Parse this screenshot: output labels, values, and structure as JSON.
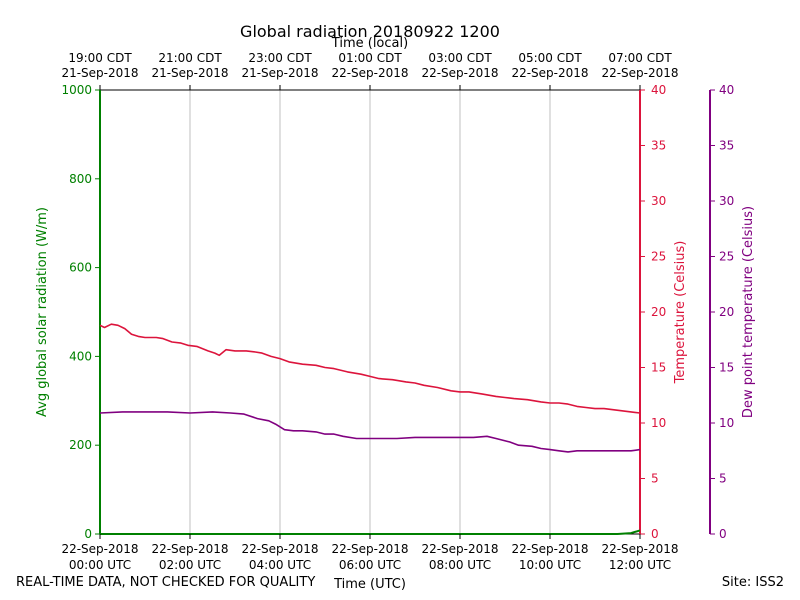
{
  "chart_data": {
    "type": "line",
    "title": "Global radiation 20180922 1200",
    "top_axis_label": "Time (local)",
    "xlabel": "Time (UTC)",
    "ylabel_left": "Avg global solar radiation (W/m)",
    "ylabel_right": "Temperature (Celsius)",
    "ylabel_far_right": "Dew point temperature (Celsius)",
    "x_range_hours_utc": [
      0,
      12
    ],
    "ylim_left": [
      0,
      1000
    ],
    "ylim_right": [
      0,
      40
    ],
    "ylim_far_right": [
      0,
      40
    ],
    "left_ticks": [
      "0",
      "200",
      "400",
      "600",
      "800",
      "1000"
    ],
    "right_ticks": [
      "0",
      "5",
      "10",
      "15",
      "20",
      "25",
      "30",
      "35",
      "40"
    ],
    "bottom_ticks": [
      [
        "22-Sep-2018",
        "00:00 UTC"
      ],
      [
        "22-Sep-2018",
        "02:00 UTC"
      ],
      [
        "22-Sep-2018",
        "04:00 UTC"
      ],
      [
        "22-Sep-2018",
        "06:00 UTC"
      ],
      [
        "22-Sep-2018",
        "08:00 UTC"
      ],
      [
        "22-Sep-2018",
        "10:00 UTC"
      ],
      [
        "22-Sep-2018",
        "12:00 UTC"
      ]
    ],
    "top_ticks": [
      [
        "19:00 CDT",
        "21-Sep-2018"
      ],
      [
        "21:00 CDT",
        "21-Sep-2018"
      ],
      [
        "23:00 CDT",
        "21-Sep-2018"
      ],
      [
        "01:00 CDT",
        "22-Sep-2018"
      ],
      [
        "03:00 CDT",
        "22-Sep-2018"
      ],
      [
        "05:00 CDT",
        "22-Sep-2018"
      ],
      [
        "07:00 CDT",
        "22-Sep-2018"
      ]
    ],
    "grid": "vertical",
    "colors": {
      "radiation": "#008000",
      "temperature": "#dc143c",
      "dewpoint": "#800080"
    },
    "series": [
      {
        "name": "Avg global solar radiation",
        "axis": "left",
        "x": [
          0,
          11.5,
          11.8,
          12
        ],
        "y": [
          0,
          0,
          2,
          8
        ]
      },
      {
        "name": "Temperature",
        "axis": "right",
        "x": [
          0,
          0.1,
          0.25,
          0.4,
          0.55,
          0.7,
          0.85,
          1.0,
          1.25,
          1.4,
          1.6,
          1.8,
          1.95,
          2.15,
          2.4,
          2.55,
          2.65,
          2.8,
          3.0,
          3.25,
          3.45,
          3.6,
          3.8,
          4.0,
          4.2,
          4.5,
          4.8,
          5.0,
          5.2,
          5.5,
          5.8,
          6.0,
          6.2,
          6.5,
          6.8,
          7.0,
          7.2,
          7.5,
          7.8,
          8.0,
          8.2,
          8.5,
          8.8,
          9.0,
          9.2,
          9.5,
          9.8,
          10.0,
          10.2,
          10.4,
          10.6,
          10.8,
          11.0,
          11.2,
          11.4,
          11.6,
          11.8,
          12.0
        ],
        "y": [
          18.8,
          18.6,
          18.9,
          18.8,
          18.5,
          18.0,
          17.8,
          17.7,
          17.7,
          17.6,
          17.3,
          17.2,
          17.0,
          16.9,
          16.5,
          16.3,
          16.1,
          16.6,
          16.5,
          16.5,
          16.4,
          16.3,
          16.0,
          15.8,
          15.5,
          15.3,
          15.2,
          15.0,
          14.9,
          14.6,
          14.4,
          14.2,
          14.0,
          13.9,
          13.7,
          13.6,
          13.4,
          13.2,
          12.9,
          12.8,
          12.8,
          12.6,
          12.4,
          12.3,
          12.2,
          12.1,
          11.9,
          11.8,
          11.8,
          11.7,
          11.5,
          11.4,
          11.3,
          11.3,
          11.2,
          11.1,
          11.0,
          10.9
        ]
      },
      {
        "name": "Dew point temperature",
        "axis": "far_right",
        "x": [
          0,
          0.5,
          1.0,
          1.5,
          2.0,
          2.5,
          2.9,
          3.2,
          3.5,
          3.75,
          3.9,
          4.1,
          4.3,
          4.5,
          4.8,
          5.0,
          5.2,
          5.4,
          5.7,
          6.0,
          6.3,
          6.6,
          7.0,
          7.5,
          8.0,
          8.3,
          8.6,
          8.8,
          9.1,
          9.3,
          9.6,
          9.8,
          10.0,
          10.2,
          10.4,
          10.6,
          10.9,
          11.2,
          11.5,
          11.8,
          12.0
        ],
        "y": [
          10.9,
          11.0,
          11.0,
          11.0,
          10.9,
          11.0,
          10.9,
          10.8,
          10.4,
          10.2,
          9.9,
          9.4,
          9.3,
          9.3,
          9.2,
          9.0,
          9.0,
          8.8,
          8.6,
          8.6,
          8.6,
          8.6,
          8.7,
          8.7,
          8.7,
          8.7,
          8.8,
          8.6,
          8.3,
          8.0,
          7.9,
          7.7,
          7.6,
          7.5,
          7.4,
          7.5,
          7.5,
          7.5,
          7.5,
          7.5,
          7.6
        ]
      }
    ]
  },
  "footer": {
    "left_note": "REAL-TIME DATA, NOT CHECKED FOR QUALITY",
    "site": "Site: ISS2"
  }
}
